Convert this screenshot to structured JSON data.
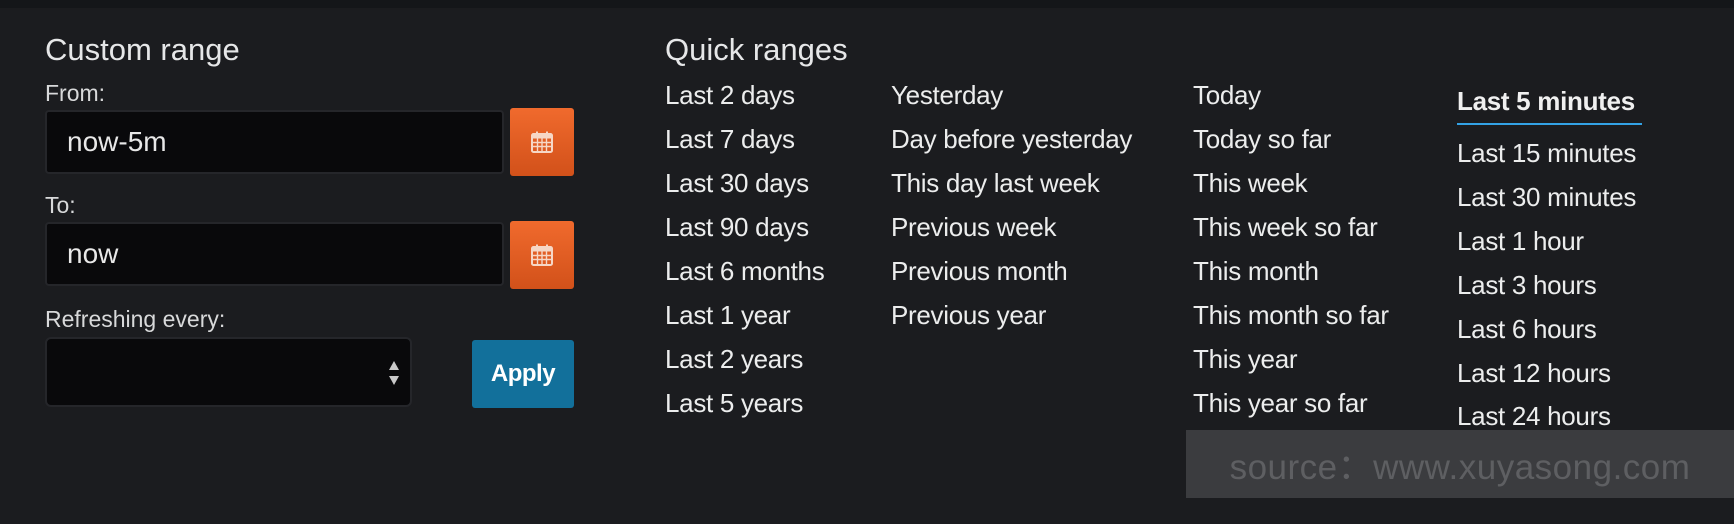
{
  "custom_range": {
    "title": "Custom range",
    "from_label": "From:",
    "from_value": "now-5m",
    "to_label": "To:",
    "to_value": "now",
    "refresh_label": "Refreshing every:",
    "refresh_value": "",
    "apply_label": "Apply"
  },
  "quick_ranges": {
    "title": "Quick ranges",
    "columns": [
      [
        "Last 2 days",
        "Last 7 days",
        "Last 30 days",
        "Last 90 days",
        "Last 6 months",
        "Last 1 year",
        "Last 2 years",
        "Last 5 years"
      ],
      [
        "Yesterday",
        "Day before yesterday",
        "This day last week",
        "Previous week",
        "Previous month",
        "Previous year"
      ],
      [
        "Today",
        "Today so far",
        "This week",
        "This week so far",
        "This month",
        "This month so far",
        "This year",
        "This year so far"
      ],
      [
        "Last 5 minutes",
        "Last 15 minutes",
        "Last 30 minutes",
        "Last 1 hour",
        "Last 3 hours",
        "Last 6 hours",
        "Last 12 hours",
        "Last 24 hours"
      ]
    ],
    "active": "Last 5 minutes"
  },
  "watermark": "source：www.xuyasong.com",
  "colors": {
    "background": "#1b1c1f",
    "calendar_button": "#e45b1f",
    "apply_button": "#12709b",
    "active_underline": "#33a2e5"
  },
  "icons": {
    "calendar": "calendar-icon",
    "select": "select-arrows-icon"
  }
}
